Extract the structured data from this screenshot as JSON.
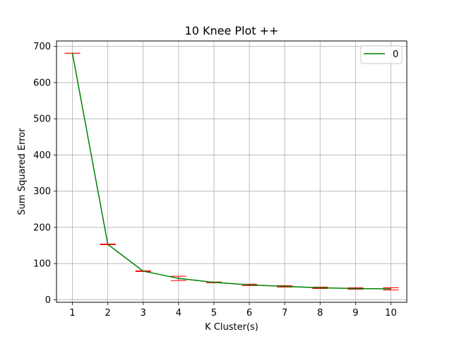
{
  "chart_data": {
    "type": "line",
    "title": "10 Knee Plot ++",
    "xlabel": "K Cluster(s)",
    "ylabel": "Sum Squared Error",
    "x": [
      1,
      2,
      3,
      4,
      5,
      6,
      7,
      8,
      9,
      10
    ],
    "xlim": [
      0.55,
      10.45
    ],
    "ylim": [
      -7,
      715
    ],
    "xticks": [
      1,
      2,
      3,
      4,
      5,
      6,
      7,
      8,
      9,
      10
    ],
    "yticks": [
      0,
      100,
      200,
      300,
      400,
      500,
      600,
      700
    ],
    "grid": true,
    "legend_position": "top-right",
    "series": [
      {
        "name": "0",
        "color": "#008000",
        "values": [
          681,
          153,
          79,
          59,
          48,
          41,
          37,
          33,
          31,
          30
        ],
        "error_low": [
          681,
          152,
          78,
          53,
          47,
          39,
          35,
          31,
          29,
          27
        ],
        "error_high": [
          681,
          154,
          80,
          65,
          49,
          43,
          39,
          35,
          33,
          33
        ],
        "error_color": "#ff0000"
      }
    ]
  }
}
